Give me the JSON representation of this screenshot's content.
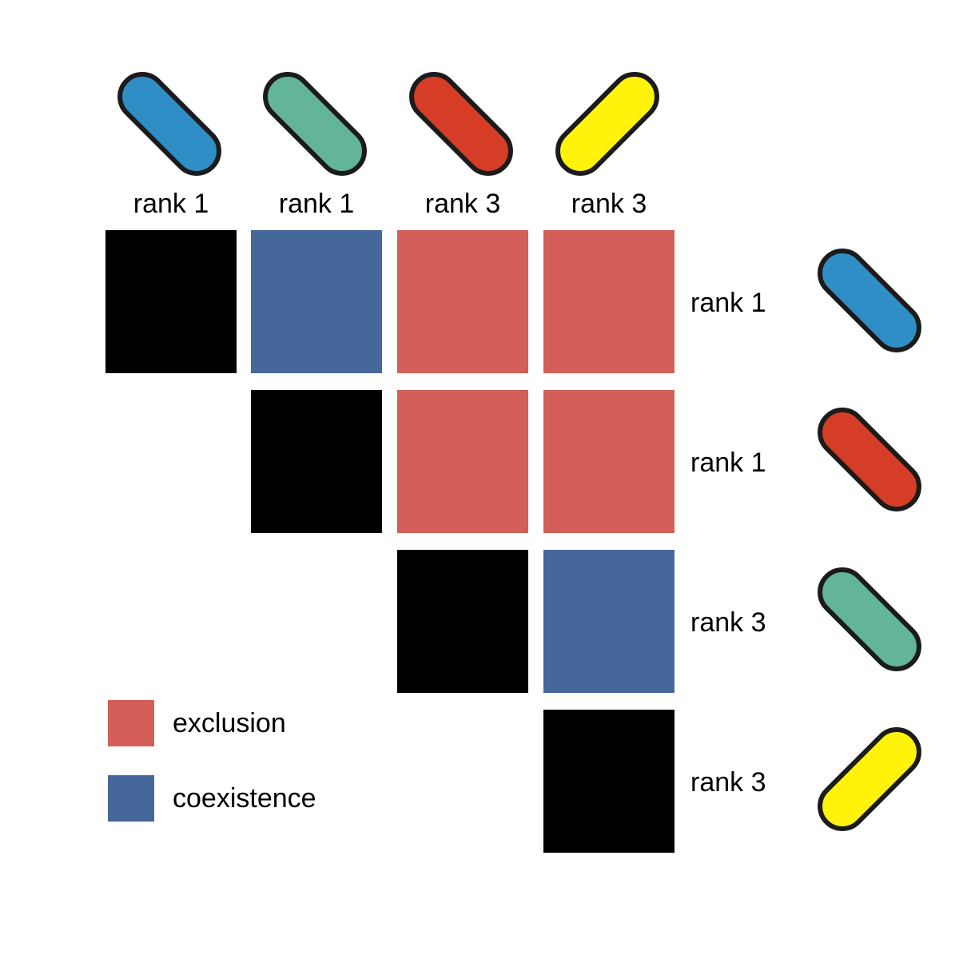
{
  "colors": {
    "diagonal": "#000000",
    "exclusion": "#d35f58",
    "coexistence": "#46679a",
    "outline": "#1b1b1b",
    "blue": "#2e8ec5",
    "teal": "#62b49b",
    "red": "#d63d26",
    "yellow": "#fff30b"
  },
  "columns": [
    {
      "label": "rank 1",
      "icon": "blue-bacterium-icon",
      "color": "blue"
    },
    {
      "label": "rank 1",
      "icon": "teal-bacterium-icon",
      "color": "teal"
    },
    {
      "label": "rank 3",
      "icon": "red-bacterium-icon",
      "color": "red"
    },
    {
      "label": "rank 3",
      "icon": "yellow-bacterium-icon",
      "color": "yellow"
    }
  ],
  "rows": [
    {
      "label": "rank 1",
      "icon": "blue-bacterium-icon",
      "color": "blue"
    },
    {
      "label": "rank 1",
      "icon": "red-bacterium-icon",
      "color": "red"
    },
    {
      "label": "rank 3",
      "icon": "teal-bacterium-icon",
      "color": "teal"
    },
    {
      "label": "rank 3",
      "icon": "yellow-bacterium-icon",
      "color": "yellow"
    }
  ],
  "matrix": [
    [
      "diagonal",
      "coexistence",
      "exclusion",
      "exclusion"
    ],
    [
      null,
      "diagonal",
      "exclusion",
      "exclusion"
    ],
    [
      null,
      null,
      "diagonal",
      "coexistence"
    ],
    [
      null,
      null,
      null,
      "diagonal"
    ]
  ],
  "legend": [
    {
      "label": "exclusion",
      "color": "exclusion"
    },
    {
      "label": "coexistence",
      "color": "coexistence"
    }
  ]
}
